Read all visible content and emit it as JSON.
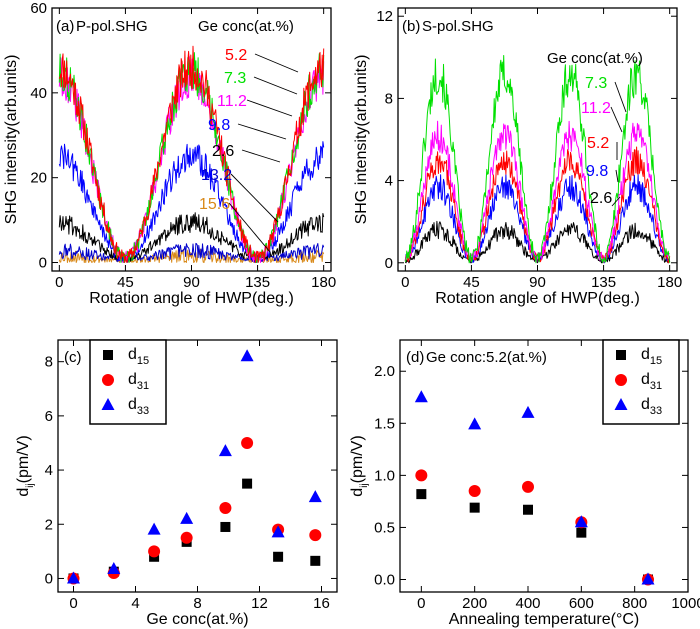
{
  "chart_data": [
    {
      "panel": "(a)",
      "type": "line",
      "title": "P-pol.SHG",
      "xlabel": "Rotation angle of HWP(deg.)",
      "ylabel": "SHG intensity(arb.units)",
      "xlim": [
        -5,
        185
      ],
      "ylim": [
        -2,
        60
      ],
      "xticks": [
        0,
        45,
        90,
        135,
        180
      ],
      "yticks": [
        0,
        20,
        40,
        60
      ],
      "legend_title": "Ge conc(at.%)",
      "series": [
        {
          "label": "5.2",
          "color": "#ff0000",
          "amplitude": 45,
          "baseline": 1,
          "period": 90,
          "peak": 0
        },
        {
          "label": "7.3",
          "color": "#00e000",
          "amplitude": 44,
          "baseline": 1,
          "period": 90,
          "peak": 0
        },
        {
          "label": "11.2",
          "color": "#ff00ff",
          "amplitude": 43,
          "baseline": 1,
          "period": 90,
          "peak": 0
        },
        {
          "label": "9.8",
          "color": "#0000ff",
          "amplitude": 24,
          "baseline": 1,
          "period": 90,
          "peak": 0
        },
        {
          "label": "2.6",
          "color": "#000000",
          "amplitude": 8.5,
          "baseline": 1,
          "period": 90,
          "peak": 0
        },
        {
          "label": "13.2",
          "color": "#0000cc",
          "amplitude": 2,
          "baseline": 0.8,
          "period": 90,
          "peak": 0
        },
        {
          "label": "15.6",
          "color": "#d98a1a",
          "amplitude": 1,
          "baseline": 0.5,
          "period": 90,
          "peak": 0
        }
      ]
    },
    {
      "panel": "(b)",
      "type": "line",
      "title": "S-pol.SHG",
      "xlabel": "Rotation angle of HWP(deg.)",
      "ylabel": "SHG intensity(arb.units)",
      "xlim": [
        -5,
        185
      ],
      "ylim": [
        -0.4,
        12.4
      ],
      "xticks": [
        0,
        45,
        90,
        135,
        180
      ],
      "yticks": [
        0,
        4,
        8,
        12
      ],
      "legend_title": "Ge conc(at.%)",
      "series": [
        {
          "label": "7.3",
          "color": "#00e000",
          "amplitude": 9,
          "baseline": 0.2,
          "period": 45,
          "peak": 22.5
        },
        {
          "label": "11.2",
          "color": "#ff00ff",
          "amplitude": 6,
          "baseline": 0.2,
          "period": 45,
          "peak": 22.5
        },
        {
          "label": "5.2",
          "color": "#ff0000",
          "amplitude": 4.8,
          "baseline": 0.2,
          "period": 45,
          "peak": 22.5
        },
        {
          "label": "9.8",
          "color": "#0000ff",
          "amplitude": 3.5,
          "baseline": 0.2,
          "period": 45,
          "peak": 22.5
        },
        {
          "label": "2.6",
          "color": "#000000",
          "amplitude": 1.5,
          "baseline": 0.1,
          "period": 45,
          "peak": 22.5
        }
      ]
    },
    {
      "panel": "(c)",
      "type": "scatter",
      "title": "",
      "xlabel": "Ge conc(at.%)",
      "ylabel": "dij(pm/V)",
      "xlim": [
        -1,
        17
      ],
      "ylim": [
        -0.5,
        8.8
      ],
      "xticks": [
        0,
        4,
        8,
        12,
        16
      ],
      "yticks": [
        0,
        2,
        4,
        6,
        8
      ],
      "x": [
        0,
        2.6,
        5.2,
        7.3,
        9.8,
        11.2,
        13.2,
        15.6
      ],
      "series": [
        {
          "name": "d15",
          "marker": "square",
          "color": "#000000",
          "values": [
            0,
            0.25,
            0.8,
            1.35,
            1.9,
            3.5,
            0.8,
            0.65
          ]
        },
        {
          "name": "d31",
          "marker": "circle",
          "color": "#ff0000",
          "values": [
            0,
            0.2,
            1.0,
            1.5,
            2.6,
            5.0,
            1.8,
            1.6
          ]
        },
        {
          "name": "d33",
          "marker": "triangle",
          "color": "#0000ff",
          "values": [
            0,
            0.35,
            1.8,
            2.2,
            4.7,
            8.2,
            1.7,
            3.0
          ]
        }
      ]
    },
    {
      "panel": "(d)",
      "type": "scatter",
      "title": "Ge conc:5.2(at.%)",
      "xlabel": "Annealing temperature(°C)",
      "ylabel": "dij(pm/V)",
      "xlim": [
        -80,
        1000
      ],
      "ylim": [
        -0.12,
        2.3
      ],
      "xticks": [
        0,
        200,
        400,
        600,
        800,
        1000
      ],
      "yticks": [
        0.0,
        0.5,
        1.0,
        1.5,
        2.0
      ],
      "x": [
        0,
        200,
        400,
        600,
        850
      ],
      "series": [
        {
          "name": "d15",
          "marker": "square",
          "color": "#000000",
          "values": [
            0.82,
            0.69,
            0.67,
            0.45,
            0
          ]
        },
        {
          "name": "d31",
          "marker": "circle",
          "color": "#ff0000",
          "values": [
            1.0,
            0.85,
            0.89,
            0.55,
            0
          ]
        },
        {
          "name": "d33",
          "marker": "triangle",
          "color": "#0000ff",
          "values": [
            1.75,
            1.49,
            1.6,
            0.55,
            0
          ]
        }
      ]
    }
  ]
}
